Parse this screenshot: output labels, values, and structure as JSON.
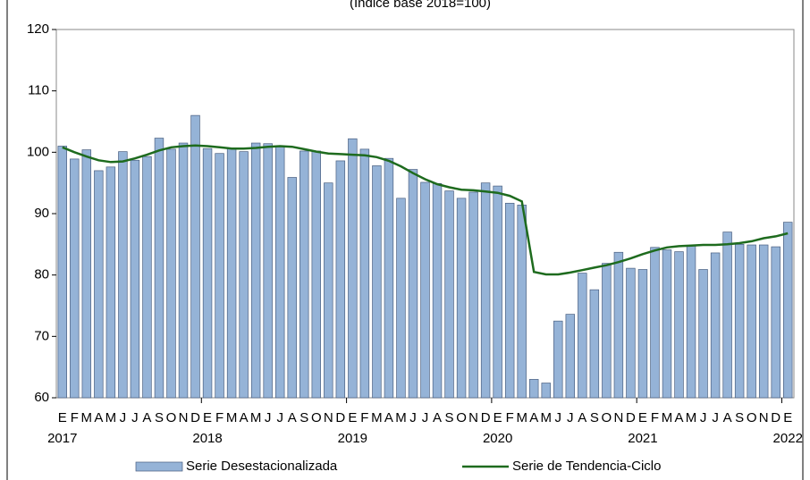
{
  "chart_data": {
    "type": "bar-line",
    "subtitle": "(Índice base 2018=100)",
    "categories": [
      "E",
      "F",
      "M",
      "A",
      "M",
      "J",
      "J",
      "A",
      "S",
      "O",
      "N",
      "D",
      "E",
      "F",
      "M",
      "A",
      "M",
      "J",
      "J",
      "A",
      "S",
      "O",
      "N",
      "D",
      "E",
      "F",
      "M",
      "A",
      "M",
      "J",
      "J",
      "A",
      "S",
      "O",
      "N",
      "D",
      "E",
      "F",
      "M",
      "A",
      "M",
      "J",
      "J",
      "A",
      "S",
      "O",
      "N",
      "D",
      "E",
      "F",
      "M",
      "A",
      "M",
      "J",
      "J",
      "A",
      "S",
      "O",
      "N",
      "D",
      "E"
    ],
    "years": [
      "2017",
      "2018",
      "2019",
      "2020",
      "2021",
      "2022"
    ],
    "ylim": [
      60,
      120
    ],
    "yticks": [
      60,
      70,
      80,
      90,
      100,
      110,
      120
    ],
    "series": [
      {
        "name": "Serie Desestacionalizada",
        "type": "bar",
        "color": "#95b3d7",
        "values": [
          101.0,
          98.9,
          100.4,
          97.0,
          97.6,
          100.1,
          98.7,
          99.3,
          102.3,
          100.5,
          101.5,
          106.0,
          100.6,
          99.8,
          100.6,
          100.1,
          101.5,
          101.4,
          101.0,
          95.9,
          100.2,
          100.2,
          95.0,
          98.6,
          102.2,
          100.5,
          97.8,
          99.0,
          92.5,
          97.2,
          95.1,
          94.9,
          93.7,
          92.5,
          93.5,
          95.0,
          94.5,
          91.7,
          91.4,
          63.0,
          62.4,
          72.5,
          73.6,
          80.3,
          77.6,
          81.9,
          83.7,
          81.1,
          80.9,
          84.5,
          84.1,
          83.8,
          84.8,
          80.9,
          83.6,
          87.0,
          85.0,
          84.9,
          84.9,
          84.6,
          88.6
        ]
      },
      {
        "name": "Serie de Tendencia-Ciclo",
        "type": "line",
        "color": "#1e6b1e",
        "values": [
          100.8,
          100.0,
          99.3,
          98.7,
          98.4,
          98.5,
          99.0,
          99.6,
          100.3,
          100.8,
          101.0,
          101.1,
          101.0,
          100.8,
          100.6,
          100.6,
          100.7,
          100.9,
          101.0,
          100.9,
          100.5,
          100.1,
          99.8,
          99.7,
          99.6,
          99.5,
          99.2,
          98.6,
          97.7,
          96.6,
          95.6,
          94.8,
          94.3,
          93.9,
          93.8,
          93.6,
          93.4,
          92.9,
          92.0,
          80.5,
          80.1,
          80.1,
          80.4,
          80.8,
          81.2,
          81.6,
          82.1,
          82.7,
          83.4,
          84.0,
          84.5,
          84.7,
          84.8,
          84.9,
          84.9,
          85.0,
          85.2,
          85.5,
          86.0,
          86.3,
          86.8
        ]
      }
    ],
    "legend": "bottom"
  }
}
